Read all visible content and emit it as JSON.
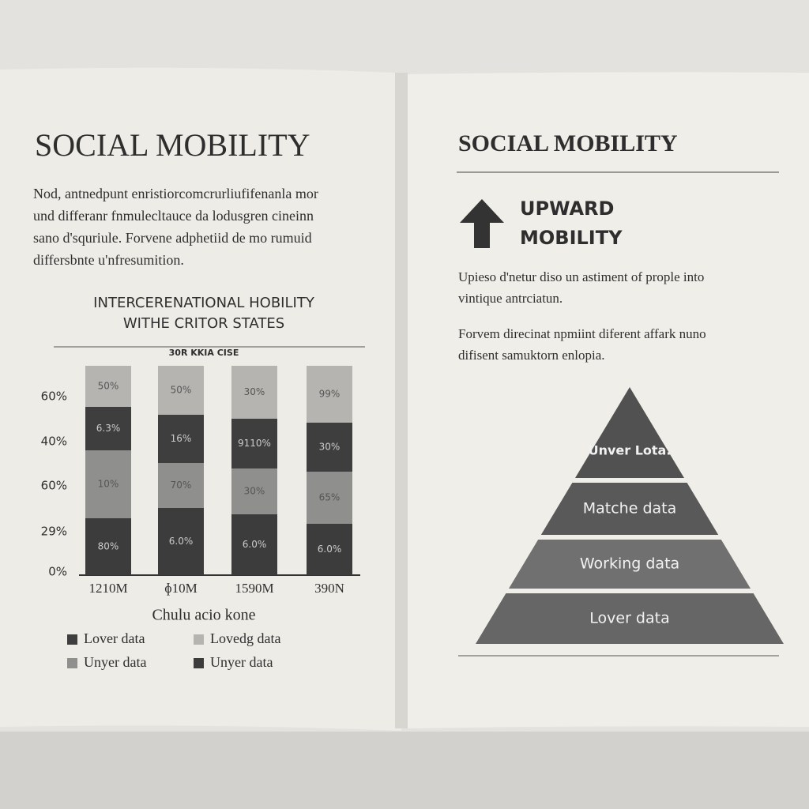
{
  "left_page": {
    "title": "SOCIAL MOBILITY",
    "paragraph": [
      "Nod, antnedpunt enristiorcomcrurliufifenanla mor",
      "und differanr fnmulecltauce da lodusgren cineinn",
      "sano d'squriule. Forvene adphetiid de mo rumuid",
      "differsbnte u'nfresumition."
    ],
    "chart": {
      "title": [
        "INTERCERENATIONAL HOBILITY",
        "WITHE CRITOR STATES"
      ],
      "subtitle": "30R KKIA CISE",
      "y_labels": [
        "60%",
        "40%",
        "60%",
        "29%",
        "0%"
      ],
      "categories": [
        "1210M",
        "ɸ10M",
        "1590M",
        "390N"
      ],
      "bar_labels": [
        [
          "50%",
          "6.3%",
          "10%",
          "80%"
        ],
        [
          "50%",
          "16%",
          "70%",
          "6.0%"
        ],
        [
          "30%",
          "9110%",
          "30%",
          "6.0%"
        ],
        [
          "99%",
          "30%",
          "65%",
          "6.0%"
        ]
      ],
      "x_label": "Chulu acio kone",
      "legend": [
        "Lover data",
        "Lovedg data",
        "Unyer data",
        "Unyer data"
      ]
    }
  },
  "right_page": {
    "title": "SOCIAL MOBILITY",
    "heading": [
      "UPWARD",
      "MOBILITY"
    ],
    "paragraphs": [
      [
        "Upieso d'netur diso un astiment of prople into",
        "vintique antrciatun."
      ],
      [
        "Forvem direcinat npmiint diferent affark nuno",
        "difisent samuktorn enlopia."
      ]
    ],
    "pyramid": [
      "Unver Lota.",
      "Matche data",
      "Working data",
      "Lover data"
    ]
  }
}
